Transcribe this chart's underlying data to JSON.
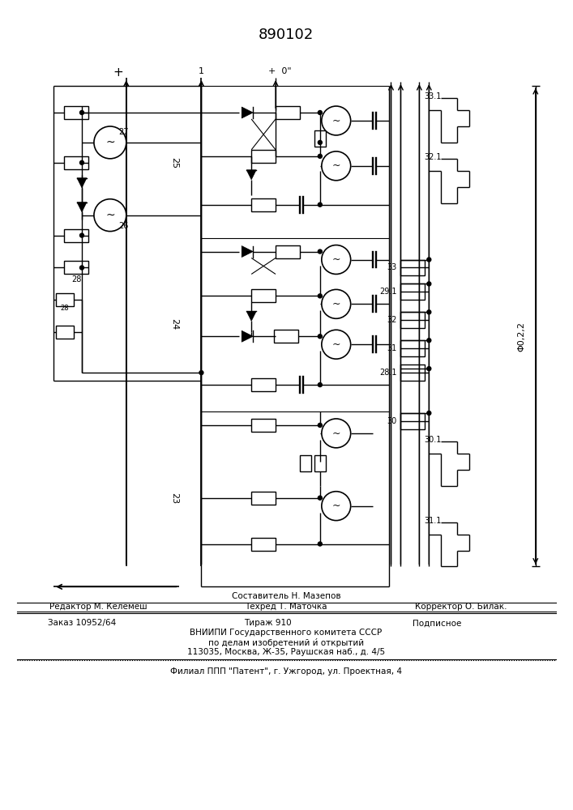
{
  "patent_number": "890102",
  "bg": "#ffffff",
  "lc": "#000000",
  "footer_sestavitel": "Составитель Н. Мазепов",
  "footer_redaktor": "Редактор М. Келемеш",
  "footer_tehred": "Техред Т. Маточка",
  "footer_korrektor": "Корректор О. Билак.",
  "footer_zakaz": "Заказ 10952/64",
  "footer_tirazh": "Тираж 910",
  "footer_podpisnoe": "Подписное",
  "footer_vniip1": "ВНИИПИ Государственного комитета СССР",
  "footer_vniip2": "по делам изобретений и́ открытий",
  "footer_vniip3": "113035, Москва, Ж-35, Раушская наб., д. 4/5",
  "footer_filial": "Филиал ППП \"Патент\", г. Ужгород, ул. Проектная, 4"
}
